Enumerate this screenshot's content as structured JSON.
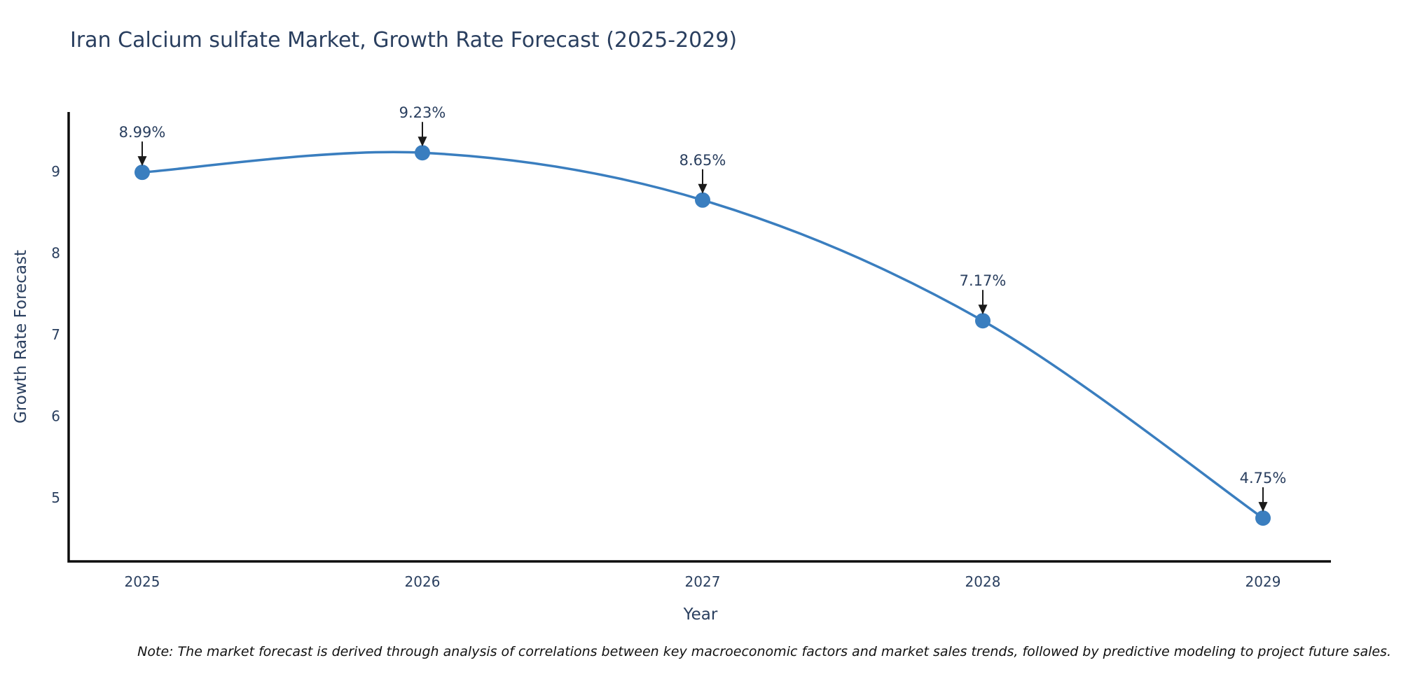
{
  "chart_data": {
    "type": "line",
    "title": "Iran Calcium sulfate Market, Growth Rate Forecast (2025-2029)",
    "x": [
      2025,
      2026,
      2027,
      2028,
      2029
    ],
    "values": [
      8.99,
      9.23,
      8.65,
      7.17,
      4.75
    ],
    "point_labels": [
      "8.99%",
      "9.23%",
      "8.65%",
      "7.17%",
      "4.75%"
    ],
    "xlabel": "Year",
    "ylabel": "Growth Rate Forecast",
    "yticks": [
      5,
      6,
      7,
      8,
      9
    ],
    "xticks": [
      "2025",
      "2026",
      "2027",
      "2028",
      "2029"
    ],
    "ylim": [
      4.2,
      9.75
    ],
    "line_shape": "spline",
    "grid": false,
    "legend": "none",
    "note": "Note: The market forecast is derived through analysis of correlations between key macroeconomic factors and market sales trends, followed by predictive modeling to project future sales.",
    "colors": {
      "line": "#3a7ebf",
      "marker": "#3a7ebf",
      "axis": "#0d0d0d",
      "tick_text": "#2a3f5f",
      "annotation_text": "#2a3f5f",
      "arrow": "#1a1a1a",
      "title_text": "#2a3f5f",
      "background": "#ffffff"
    }
  }
}
